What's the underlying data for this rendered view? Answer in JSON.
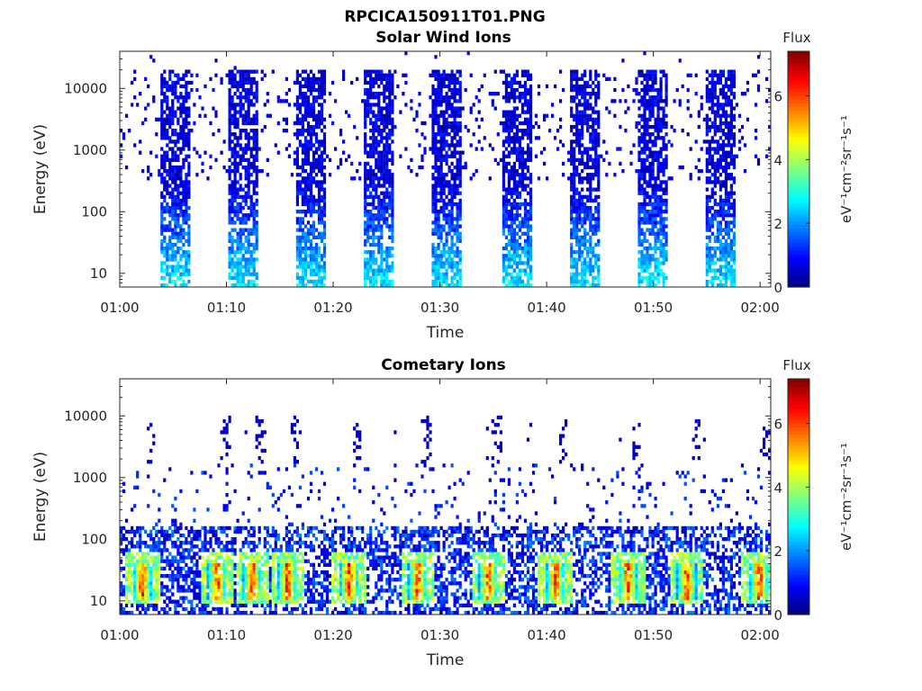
{
  "figure_title": "RPCICA150911T01.PNG",
  "chart_data": [
    {
      "type": "heatmap",
      "title": "Solar Wind Ions",
      "xlabel": "Time",
      "ylabel": "Energy (eV)",
      "xlim": [
        "01:00",
        "02:01"
      ],
      "ylim": [
        6,
        40000
      ],
      "yscale": "log",
      "x_ticks": [
        "01:00",
        "01:10",
        "01:20",
        "01:30",
        "01:40",
        "01:50",
        "02:00"
      ],
      "y_ticks": [
        "10",
        "100",
        "1000",
        "10000"
      ],
      "colorbar": {
        "label_top": "Flux",
        "label_side": "eV⁻¹cm⁻²sr⁻¹s⁻¹",
        "range": [
          0,
          7.4
        ],
        "ticks": [
          "0",
          "2",
          "4",
          "6"
        ],
        "colormap": "jet"
      },
      "pattern": {
        "bursts_min": [
          3.6,
          10.0,
          16.4,
          22.8,
          29.2,
          35.6,
          42.0,
          48.4,
          54.8
        ],
        "burst_width_min": 2.8,
        "burst_energy_range_eV": [
          6,
          20000
        ],
        "background_energy_range_eV": [
          300,
          20000
        ],
        "flux_low_energy": 2.5,
        "flux_high_energy": 0.6
      }
    },
    {
      "type": "heatmap",
      "title": "Cometary Ions",
      "xlabel": "Time",
      "ylabel": "Energy (eV)",
      "xlim": [
        "01:00",
        "02:01"
      ],
      "ylim": [
        6,
        40000
      ],
      "yscale": "log",
      "x_ticks": [
        "01:00",
        "01:10",
        "01:20",
        "01:30",
        "01:40",
        "01:50",
        "02:00"
      ],
      "y_ticks": [
        "10",
        "100",
        "1000",
        "10000"
      ],
      "colorbar": {
        "label_top": "Flux",
        "label_side": "eV⁻¹cm⁻²sr⁻¹s⁻¹",
        "range": [
          0,
          7.4
        ],
        "ticks": [
          "0",
          "2",
          "4",
          "6"
        ],
        "colormap": "jet"
      },
      "pattern": {
        "hot_spots_min": [
          2.0,
          9.0,
          12.3,
          15.6,
          21.4,
          27.8,
          34.4,
          40.7,
          47.5,
          53.0,
          59.8
        ],
        "hot_spot_energy_eV": [
          10,
          40
        ],
        "hot_spot_peak_flux": 6.5,
        "dense_energy_range_eV": [
          6,
          150
        ],
        "sparse_energy_range_eV": [
          150,
          1500
        ],
        "streak_energy_range_eV": [
          1500,
          10000
        ]
      }
    }
  ]
}
